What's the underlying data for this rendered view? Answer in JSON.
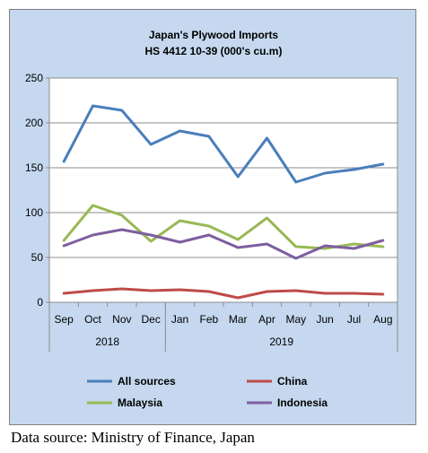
{
  "chart_data": {
    "type": "line",
    "title": [
      "Japan's Plywood Imports",
      "HS 4412 10-39  (000's cu.m)"
    ],
    "categories": [
      "Sep",
      "Oct",
      "Nov",
      "Dec",
      "Jan",
      "Feb",
      "Mar",
      "Apr",
      "May",
      "Jun",
      "Jul",
      "Aug"
    ],
    "year_groups": [
      {
        "label": "2018",
        "start": 0,
        "end": 3
      },
      {
        "label": "2019",
        "start": 4,
        "end": 11
      }
    ],
    "ylim": [
      0,
      250
    ],
    "yticks": [
      0,
      50,
      100,
      150,
      200,
      250
    ],
    "grid": true,
    "legend_position": "bottom",
    "series": [
      {
        "name": "All sources",
        "color": "#4a7ebb",
        "values": [
          157,
          219,
          214,
          176,
          191,
          185,
          140,
          183,
          134,
          144,
          148,
          154
        ]
      },
      {
        "name": "China",
        "color": "#be4b48",
        "values": [
          10,
          13,
          15,
          13,
          14,
          12,
          5,
          12,
          13,
          10,
          10,
          9
        ]
      },
      {
        "name": "Malaysia",
        "color": "#98b954",
        "values": [
          69,
          108,
          97,
          68,
          91,
          85,
          70,
          94,
          62,
          60,
          65,
          62
        ]
      },
      {
        "name": "Indonesia",
        "color": "#7d5fa0",
        "values": [
          63,
          75,
          81,
          75,
          67,
          75,
          61,
          65,
          49,
          63,
          60,
          69
        ]
      }
    ]
  },
  "source_note": "Data source: Ministry of Finance, Japan"
}
